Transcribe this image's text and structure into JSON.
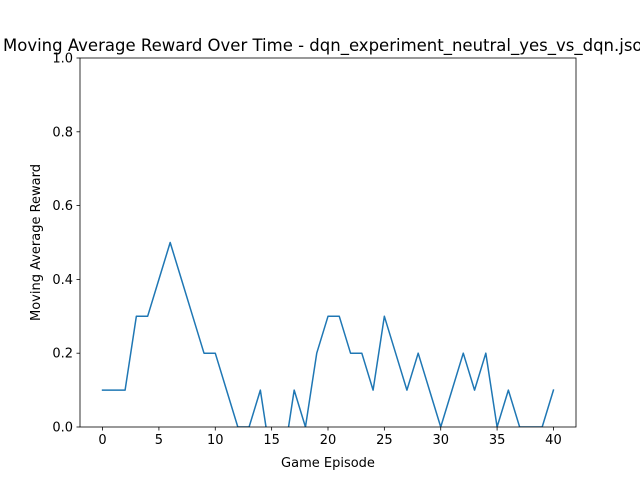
{
  "chart_data": {
    "type": "line",
    "title": "Moving Average Reward Over Time - dqn_experiment_neutral_yes_vs_dqn.json",
    "xlabel": "Game Episode",
    "ylabel": "Moving Average Reward",
    "xlim": [
      -2,
      42
    ],
    "ylim": [
      0,
      1
    ],
    "xticks": [
      0,
      5,
      10,
      15,
      20,
      25,
      30,
      35,
      40
    ],
    "yticks": [
      0.0,
      0.2,
      0.4,
      0.6,
      0.8,
      1.0
    ],
    "xtick_labels": [
      "0",
      "5",
      "10",
      "15",
      "20",
      "25",
      "30",
      "35",
      "40"
    ],
    "ytick_labels": [
      "0.0",
      "0.2",
      "0.4",
      "0.6",
      "0.8",
      "1.0"
    ],
    "grid": false,
    "legend": false,
    "series": [
      {
        "color": "#1f77b4",
        "x": [
          0,
          1,
          2,
          3,
          4,
          5,
          6,
          7,
          8,
          9,
          10,
          11,
          12,
          13,
          14,
          15,
          16,
          17,
          18,
          19,
          20,
          21,
          22,
          23,
          24,
          25,
          26,
          27,
          28,
          29,
          30,
          31,
          32,
          33,
          34,
          35,
          36,
          37,
          38,
          39,
          40
        ],
        "values": [
          0.1,
          0.1,
          0.1,
          0.3,
          0.3,
          0.4,
          0.5,
          0.4,
          0.3,
          0.2,
          0.2,
          0.1,
          0.0,
          0.0,
          0.1,
          -0.1,
          -0.1,
          0.1,
          0.0,
          0.2,
          0.3,
          0.3,
          0.2,
          0.2,
          0.1,
          0.3,
          0.2,
          0.1,
          0.2,
          0.1,
          0.0,
          0.1,
          0.2,
          0.1,
          0.2,
          0.0,
          0.1,
          0.0,
          0.0,
          0.0,
          0.1
        ]
      }
    ]
  }
}
